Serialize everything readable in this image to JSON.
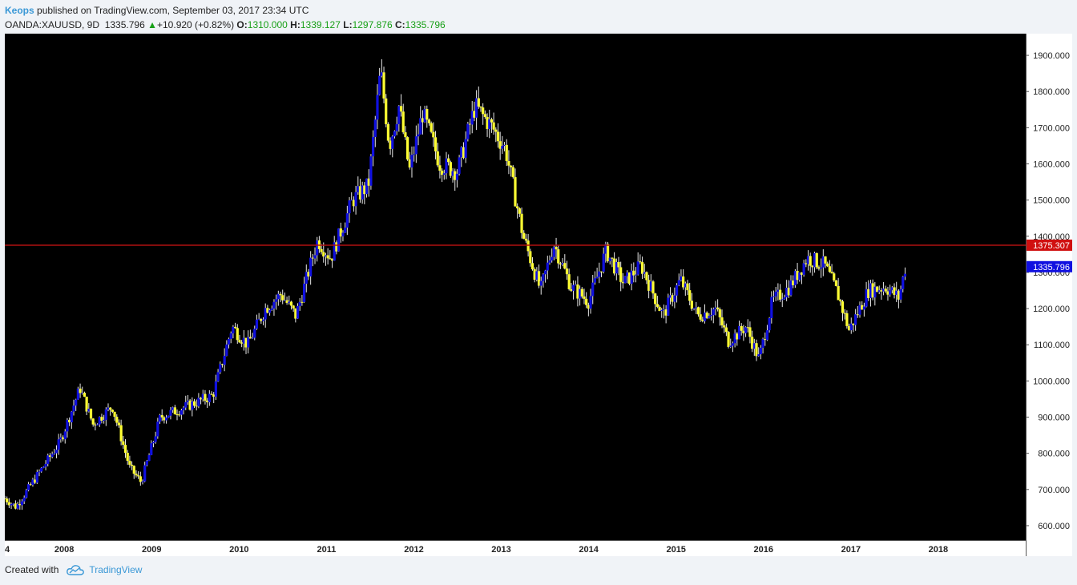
{
  "header": {
    "author": "Keops",
    "published": "published on TradingView.com, September 03, 2017 23:34 UTC",
    "symbol": "OANDA:XAUUSD, 9D",
    "last": "1335.796",
    "change": "+10.920 (+0.82%)",
    "o_label": "O:",
    "o_value": "1310.000",
    "h_label": "H:",
    "h_value": "1339.127",
    "l_label": "L:",
    "l_value": "1297.876",
    "c_label": "C:",
    "c_value": "1335.796"
  },
  "footer": {
    "created_with": "Created with",
    "brand": "TradingView"
  },
  "colors": {
    "up": "#1010e0",
    "down": "#ffff33",
    "background": "#000000",
    "hline": "#b01010",
    "price_tag": "#1010e0",
    "hline_tag": "#d01010"
  },
  "chart_data": {
    "type": "candlestick",
    "ylim": [
      560,
      1960
    ],
    "y_ticks": [
      "600.000",
      "700.000",
      "800.000",
      "900.000",
      "1000.000",
      "1100.000",
      "1200.000",
      "1300.000",
      "1400.000",
      "1500.000",
      "1600.000",
      "1700.000",
      "1800.000",
      "1900.000"
    ],
    "x_ticks": [
      "4",
      "2008",
      "2009",
      "2010",
      "2011",
      "2012",
      "2013",
      "2014",
      "2015",
      "2016",
      "2017",
      "2018"
    ],
    "x_range": [
      2007.32,
      2019.0
    ],
    "horizontal_line": {
      "value": 1375.307,
      "label": "1375.307"
    },
    "last_price": {
      "value": 1335.796,
      "label": "1335.796"
    },
    "anchors": [
      [
        2007.32,
        675
      ],
      [
        2007.45,
        652
      ],
      [
        2007.7,
        742
      ],
      [
        2007.95,
        830
      ],
      [
        2008.18,
        980
      ],
      [
        2008.33,
        880
      ],
      [
        2008.55,
        930
      ],
      [
        2008.75,
        760
      ],
      [
        2008.88,
        720
      ],
      [
        2009.1,
        900
      ],
      [
        2009.4,
        930
      ],
      [
        2009.7,
        960
      ],
      [
        2009.92,
        1150
      ],
      [
        2010.1,
        1100
      ],
      [
        2010.3,
        1200
      ],
      [
        2010.48,
        1240
      ],
      [
        2010.65,
        1180
      ],
      [
        2010.9,
        1390
      ],
      [
        2011.05,
        1340
      ],
      [
        2011.3,
        1500
      ],
      [
        2011.48,
        1540
      ],
      [
        2011.62,
        1860
      ],
      [
        2011.72,
        1650
      ],
      [
        2011.83,
        1760
      ],
      [
        2011.95,
        1580
      ],
      [
        2012.1,
        1740
      ],
      [
        2012.3,
        1600
      ],
      [
        2012.5,
        1580
      ],
      [
        2012.7,
        1760
      ],
      [
        2012.9,
        1700
      ],
      [
        2013.05,
        1640
      ],
      [
        2013.25,
        1400
      ],
      [
        2013.45,
        1250
      ],
      [
        2013.6,
        1380
      ],
      [
        2013.8,
        1260
      ],
      [
        2014.0,
        1220
      ],
      [
        2014.2,
        1360
      ],
      [
        2014.4,
        1270
      ],
      [
        2014.6,
        1320
      ],
      [
        2014.85,
        1180
      ],
      [
        2015.05,
        1280
      ],
      [
        2015.25,
        1180
      ],
      [
        2015.45,
        1200
      ],
      [
        2015.6,
        1110
      ],
      [
        2015.8,
        1150
      ],
      [
        2015.95,
        1060
      ],
      [
        2016.1,
        1220
      ],
      [
        2016.3,
        1260
      ],
      [
        2016.5,
        1340
      ],
      [
        2016.7,
        1320
      ],
      [
        2016.85,
        1240
      ],
      [
        2016.98,
        1140
      ],
      [
        2017.2,
        1250
      ],
      [
        2017.4,
        1260
      ],
      [
        2017.55,
        1230
      ],
      [
        2017.64,
        1335.796
      ]
    ]
  }
}
